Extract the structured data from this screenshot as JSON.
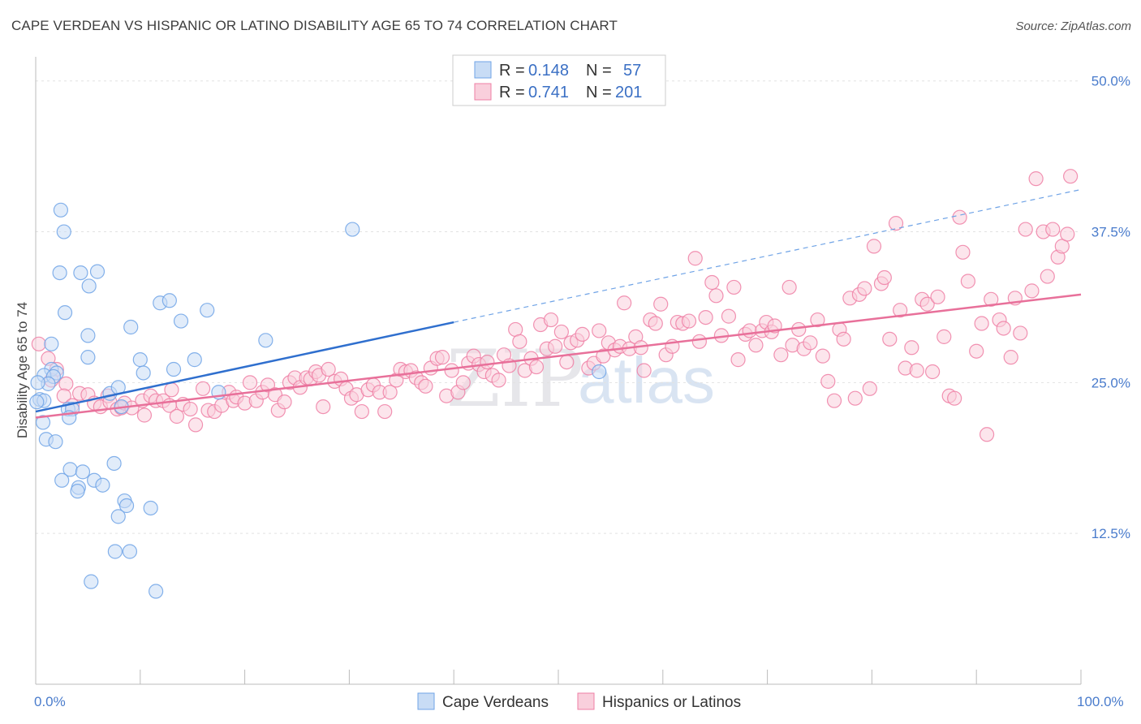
{
  "title": "CAPE VERDEAN VS HISPANIC OR LATINO DISABILITY AGE 65 TO 74 CORRELATION CHART",
  "source": "Source: ZipAtlas.com",
  "watermark": {
    "zip": "ZIP",
    "atlas": "atlas"
  },
  "legend": {
    "r_label": "R =",
    "n_label": "N =",
    "rows": [
      {
        "r": "0.148",
        "n": "57",
        "color": "#aac8f0"
      },
      {
        "r": "0.741",
        "n": "201",
        "color": "#f7b8cc"
      }
    ]
  },
  "chart_data": {
    "type": "scatter",
    "title": "",
    "xlabel": "",
    "ylabel": "Disability Age 65 to 74",
    "xlim": [
      0,
      100
    ],
    "ylim": [
      0,
      52
    ],
    "y_ticks": [
      12.5,
      25.0,
      37.5,
      50.0
    ],
    "y_tick_labels": [
      "12.5%",
      "25.0%",
      "37.5%",
      "50.0%"
    ],
    "x_tick_labels": [
      "0.0%",
      "100.0%"
    ],
    "series": [
      {
        "name": "Cape Verdeans",
        "color": "#6fa3e6",
        "fill": "#c8dcf5",
        "trend": {
          "x0": 0,
          "y0": 22.6,
          "x1": 40,
          "y1": 30.0,
          "solid_to": 40,
          "dashed_to": 100,
          "y_end": 41.0
        },
        "points": [
          [
            2.4,
            39.3
          ],
          [
            2.7,
            37.5
          ],
          [
            2.3,
            34.1
          ],
          [
            4.3,
            34.1
          ],
          [
            5.9,
            34.2
          ],
          [
            5.1,
            33.0
          ],
          [
            2.8,
            30.8
          ],
          [
            11.9,
            31.6
          ],
          [
            12.8,
            31.8
          ],
          [
            16.4,
            31.0
          ],
          [
            9.1,
            29.6
          ],
          [
            13.9,
            30.1
          ],
          [
            5.0,
            28.9
          ],
          [
            1.5,
            28.2
          ],
          [
            22.0,
            28.5
          ],
          [
            30.3,
            37.7
          ],
          [
            5.0,
            27.1
          ],
          [
            10.0,
            26.9
          ],
          [
            15.2,
            26.9
          ],
          [
            13.2,
            26.1
          ],
          [
            1.5,
            26.1
          ],
          [
            2.0,
            25.8
          ],
          [
            0.8,
            25.6
          ],
          [
            1.7,
            25.5
          ],
          [
            10.3,
            25.8
          ],
          [
            1.2,
            24.9
          ],
          [
            0.2,
            25.0
          ],
          [
            7.1,
            24.1
          ],
          [
            17.5,
            24.2
          ],
          [
            7.9,
            24.6
          ],
          [
            0.4,
            23.6
          ],
          [
            0.8,
            23.5
          ],
          [
            0.1,
            23.4
          ],
          [
            3.1,
            22.8
          ],
          [
            3.5,
            22.8
          ],
          [
            8.2,
            23.0
          ],
          [
            3.2,
            22.1
          ],
          [
            0.7,
            21.7
          ],
          [
            1.0,
            20.3
          ],
          [
            1.9,
            20.1
          ],
          [
            7.5,
            18.3
          ],
          [
            3.3,
            17.8
          ],
          [
            4.5,
            17.6
          ],
          [
            2.5,
            16.9
          ],
          [
            5.6,
            16.9
          ],
          [
            6.4,
            16.5
          ],
          [
            4.1,
            16.3
          ],
          [
            4.0,
            16.0
          ],
          [
            8.5,
            15.2
          ],
          [
            8.7,
            14.8
          ],
          [
            11.0,
            14.6
          ],
          [
            7.9,
            13.9
          ],
          [
            7.6,
            11.0
          ],
          [
            9.0,
            11.0
          ],
          [
            5.3,
            8.5
          ],
          [
            11.5,
            7.7
          ],
          [
            53.9,
            25.9
          ]
        ]
      },
      {
        "name": "Hispanics or Latinos",
        "color": "#ee7fa4",
        "fill": "#f9cfdc",
        "trend": {
          "x0": 0,
          "y0": 22.1,
          "x1": 100,
          "y1": 32.3
        },
        "points": [
          [
            0.3,
            28.2
          ],
          [
            1.2,
            27.0
          ],
          [
            2.0,
            26.1
          ],
          [
            1.5,
            25.2
          ],
          [
            2.9,
            24.9
          ],
          [
            2.7,
            23.9
          ],
          [
            3.5,
            23.1
          ],
          [
            4.2,
            24.1
          ],
          [
            5.0,
            24.0
          ],
          [
            5.6,
            23.3
          ],
          [
            6.2,
            23.0
          ],
          [
            6.9,
            23.9
          ],
          [
            7.1,
            23.4
          ],
          [
            7.8,
            22.8
          ],
          [
            8.2,
            22.9
          ],
          [
            8.5,
            23.3
          ],
          [
            9.2,
            22.9
          ],
          [
            10.2,
            23.5
          ],
          [
            10.4,
            22.3
          ],
          [
            11.0,
            23.9
          ],
          [
            11.5,
            23.5
          ],
          [
            12.2,
            23.5
          ],
          [
            12.8,
            23.1
          ],
          [
            13.0,
            24.4
          ],
          [
            13.5,
            22.2
          ],
          [
            14.1,
            23.2
          ],
          [
            14.8,
            22.8
          ],
          [
            15.3,
            21.5
          ],
          [
            16.0,
            24.5
          ],
          [
            16.5,
            22.7
          ],
          [
            17.1,
            22.6
          ],
          [
            17.8,
            23.1
          ],
          [
            18.5,
            24.2
          ],
          [
            18.9,
            23.5
          ],
          [
            19.2,
            23.8
          ],
          [
            20.0,
            23.3
          ],
          [
            20.5,
            25.0
          ],
          [
            21.1,
            23.5
          ],
          [
            21.7,
            24.2
          ],
          [
            22.2,
            24.8
          ],
          [
            22.9,
            24.0
          ],
          [
            23.2,
            22.7
          ],
          [
            23.8,
            23.4
          ],
          [
            24.3,
            25.0
          ],
          [
            24.8,
            25.4
          ],
          [
            25.3,
            24.6
          ],
          [
            25.9,
            25.4
          ],
          [
            26.3,
            25.3
          ],
          [
            26.8,
            25.9
          ],
          [
            27.1,
            25.6
          ],
          [
            27.5,
            23.0
          ],
          [
            28.0,
            26.1
          ],
          [
            28.6,
            25.1
          ],
          [
            29.2,
            25.3
          ],
          [
            29.7,
            24.5
          ],
          [
            30.2,
            23.7
          ],
          [
            30.7,
            24.0
          ],
          [
            31.2,
            22.6
          ],
          [
            31.8,
            24.4
          ],
          [
            32.3,
            24.8
          ],
          [
            32.9,
            24.2
          ],
          [
            33.4,
            22.6
          ],
          [
            33.9,
            24.2
          ],
          [
            34.5,
            25.2
          ],
          [
            34.9,
            26.1
          ],
          [
            35.4,
            25.9
          ],
          [
            35.9,
            26.0
          ],
          [
            36.4,
            25.4
          ],
          [
            36.9,
            25.0
          ],
          [
            37.3,
            24.7
          ],
          [
            37.8,
            26.2
          ],
          [
            38.4,
            27.0
          ],
          [
            38.9,
            27.1
          ],
          [
            39.3,
            23.9
          ],
          [
            39.8,
            26.0
          ],
          [
            40.4,
            24.2
          ],
          [
            40.9,
            25.0
          ],
          [
            41.4,
            26.6
          ],
          [
            41.9,
            27.2
          ],
          [
            42.4,
            26.5
          ],
          [
            42.9,
            25.9
          ],
          [
            43.2,
            26.7
          ],
          [
            43.7,
            25.6
          ],
          [
            44.3,
            25.2
          ],
          [
            44.8,
            27.3
          ],
          [
            45.3,
            26.4
          ],
          [
            45.9,
            29.4
          ],
          [
            46.3,
            28.4
          ],
          [
            46.8,
            26.0
          ],
          [
            47.4,
            27.0
          ],
          [
            47.9,
            26.3
          ],
          [
            48.3,
            29.8
          ],
          [
            48.9,
            27.8
          ],
          [
            49.3,
            30.2
          ],
          [
            49.7,
            28.0
          ],
          [
            50.3,
            29.2
          ],
          [
            50.8,
            26.7
          ],
          [
            51.2,
            28.3
          ],
          [
            51.8,
            28.5
          ],
          [
            52.3,
            29.0
          ],
          [
            52.9,
            26.2
          ],
          [
            53.4,
            26.6
          ],
          [
            53.9,
            29.3
          ],
          [
            54.3,
            27.2
          ],
          [
            54.8,
            28.3
          ],
          [
            55.4,
            27.7
          ],
          [
            55.9,
            28.0
          ],
          [
            56.3,
            31.6
          ],
          [
            56.8,
            27.8
          ],
          [
            57.4,
            28.8
          ],
          [
            57.9,
            27.9
          ],
          [
            58.2,
            26.0
          ],
          [
            58.8,
            30.2
          ],
          [
            59.3,
            29.9
          ],
          [
            59.8,
            31.5
          ],
          [
            60.3,
            27.3
          ],
          [
            60.9,
            28.0
          ],
          [
            61.4,
            30.0
          ],
          [
            61.9,
            29.9
          ],
          [
            62.5,
            30.1
          ],
          [
            63.1,
            35.3
          ],
          [
            63.5,
            28.4
          ],
          [
            64.1,
            30.4
          ],
          [
            64.7,
            33.3
          ],
          [
            65.1,
            32.2
          ],
          [
            65.6,
            28.9
          ],
          [
            66.3,
            30.5
          ],
          [
            66.8,
            32.9
          ],
          [
            67.2,
            26.9
          ],
          [
            67.9,
            29.0
          ],
          [
            68.3,
            29.3
          ],
          [
            68.9,
            28.1
          ],
          [
            69.5,
            29.3
          ],
          [
            69.9,
            30.0
          ],
          [
            70.4,
            29.2
          ],
          [
            70.7,
            29.7
          ],
          [
            71.3,
            27.3
          ],
          [
            72.1,
            32.9
          ],
          [
            72.4,
            28.1
          ],
          [
            73.0,
            29.4
          ],
          [
            73.5,
            27.8
          ],
          [
            74.1,
            28.3
          ],
          [
            74.8,
            30.2
          ],
          [
            75.3,
            27.2
          ],
          [
            75.8,
            25.1
          ],
          [
            76.4,
            23.5
          ],
          [
            76.9,
            29.4
          ],
          [
            77.3,
            28.6
          ],
          [
            77.9,
            32.0
          ],
          [
            78.4,
            23.7
          ],
          [
            78.8,
            32.3
          ],
          [
            79.3,
            32.8
          ],
          [
            79.8,
            24.5
          ],
          [
            80.2,
            36.3
          ],
          [
            80.9,
            33.2
          ],
          [
            81.2,
            33.7
          ],
          [
            81.7,
            28.6
          ],
          [
            82.3,
            38.2
          ],
          [
            82.7,
            31.0
          ],
          [
            83.2,
            26.2
          ],
          [
            83.8,
            27.9
          ],
          [
            84.3,
            26.0
          ],
          [
            84.8,
            31.9
          ],
          [
            85.3,
            31.5
          ],
          [
            85.8,
            25.9
          ],
          [
            86.3,
            32.1
          ],
          [
            86.9,
            28.8
          ],
          [
            87.4,
            23.9
          ],
          [
            87.9,
            23.7
          ],
          [
            88.4,
            38.7
          ],
          [
            88.7,
            35.8
          ],
          [
            89.2,
            33.4
          ],
          [
            90.0,
            27.6
          ],
          [
            90.5,
            29.9
          ],
          [
            91.0,
            20.7
          ],
          [
            91.4,
            31.9
          ],
          [
            92.2,
            30.2
          ],
          [
            92.6,
            29.5
          ],
          [
            93.3,
            27.1
          ],
          [
            93.7,
            32.0
          ],
          [
            94.2,
            29.1
          ],
          [
            94.7,
            37.7
          ],
          [
            95.3,
            32.6
          ],
          [
            95.7,
            41.9
          ],
          [
            96.4,
            37.5
          ],
          [
            96.8,
            33.8
          ],
          [
            97.3,
            37.7
          ],
          [
            97.8,
            35.4
          ],
          [
            98.2,
            36.3
          ],
          [
            98.7,
            37.3
          ],
          [
            99.0,
            42.1
          ]
        ]
      }
    ]
  }
}
